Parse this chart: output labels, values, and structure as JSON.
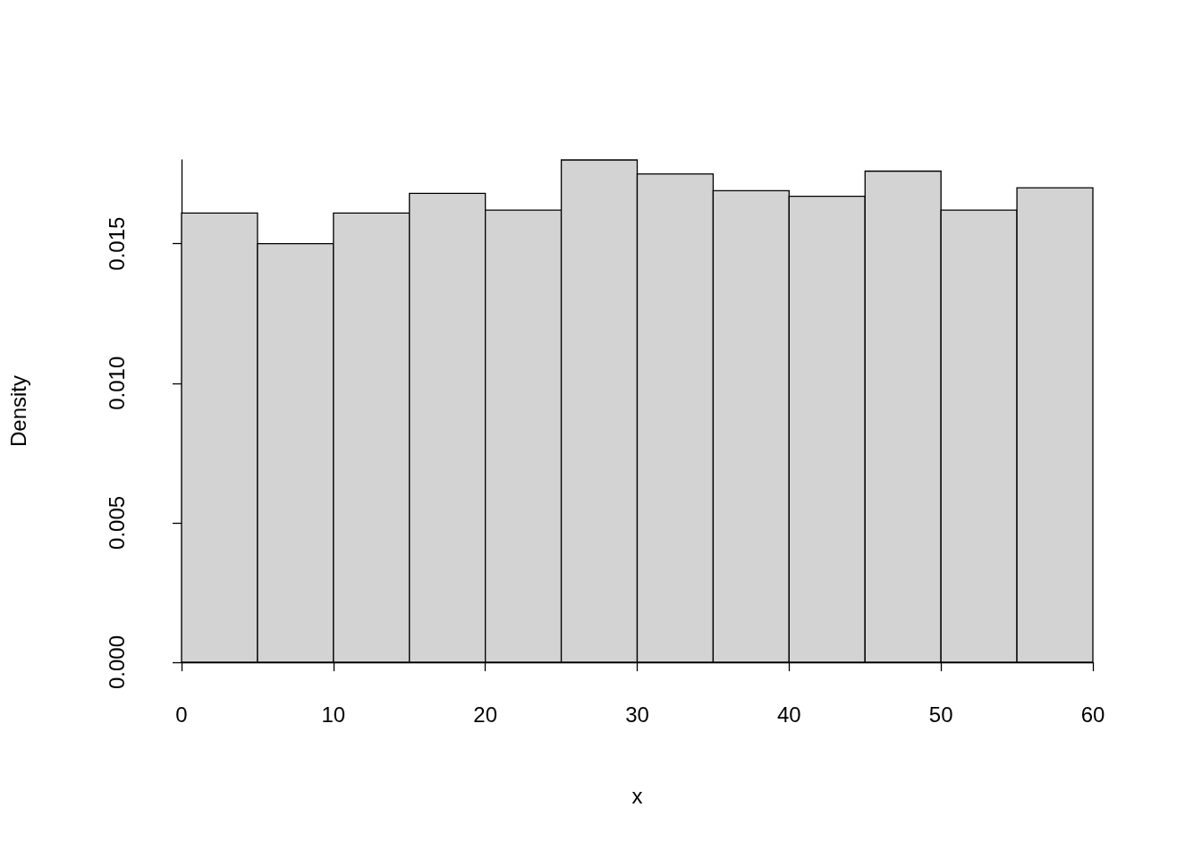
{
  "chart_data": {
    "type": "histogram",
    "xlabel": "x",
    "ylabel": "Density",
    "color": "#d3d3d3",
    "bins": [
      0,
      5,
      10,
      15,
      20,
      25,
      30,
      35,
      40,
      45,
      50,
      55,
      60
    ],
    "values": [
      0.0161,
      0.015,
      0.0161,
      0.0168,
      0.0162,
      0.018,
      0.0175,
      0.0169,
      0.0167,
      0.0176,
      0.0162,
      0.017
    ],
    "xlim": [
      0,
      60
    ],
    "xticks": [
      0,
      10,
      20,
      30,
      40,
      50,
      60
    ],
    "ylim": [
      0,
      0.018
    ],
    "yticks": [
      {
        "value": 0,
        "label": "0.000"
      },
      {
        "value": 0.005,
        "label": "0.005"
      },
      {
        "value": 0.01,
        "label": "0.010"
      },
      {
        "value": 0.015,
        "label": "0.015"
      }
    ]
  }
}
